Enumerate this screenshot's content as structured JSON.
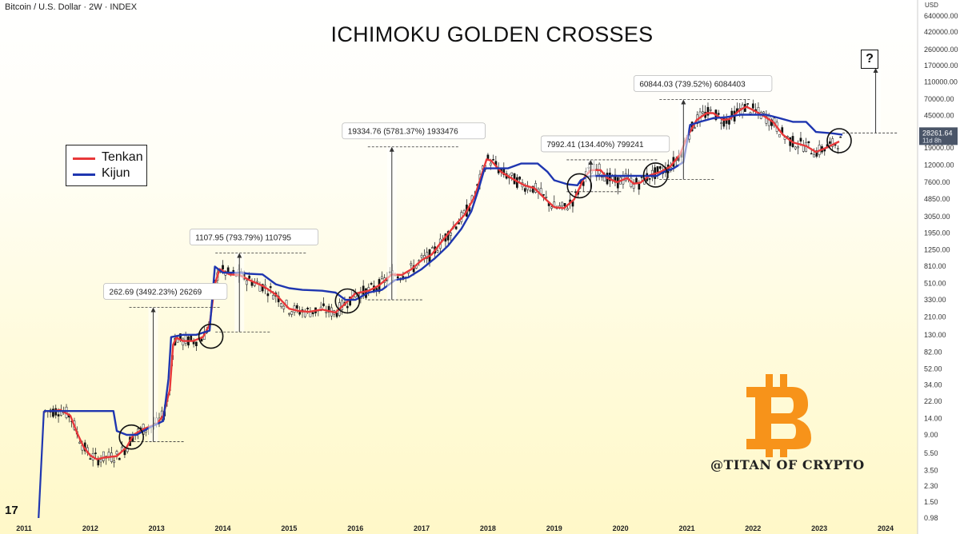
{
  "header": {
    "symbol_line": "Bitcoin / U.S. Dollar · 2W · INDEX",
    "title": "ICHIMOKU GOLDEN CROSSES"
  },
  "legend": [
    {
      "label": "Tenkan",
      "color": "#e8383a"
    },
    {
      "label": "Kijun",
      "color": "#1f36b0"
    }
  ],
  "watermark": "@TITAN OF CRYPTO",
  "question_mark": "?",
  "tv_logo": "17",
  "price_scale": {
    "currency": "USD",
    "last_price": "28261.64",
    "countdown": "11d 8h",
    "last_price_color": "#4a5568"
  },
  "colors": {
    "tenkan": "#e8383a",
    "kijun": "#1f36b0",
    "candle": "#111111",
    "bitcoin_logo": "#f7931a"
  },
  "chart_data": {
    "type": "line",
    "log_scale": true,
    "x_axis_ticks": [
      "2011",
      "2012",
      "2013",
      "2014",
      "2015",
      "2016",
      "2017",
      "2018",
      "2019",
      "2020",
      "2021",
      "2022",
      "2023",
      "2024"
    ],
    "y_axis_ticks": [
      640000,
      420000,
      260000,
      170000,
      110000,
      70000,
      45000,
      28261.64,
      19000,
      12000,
      7600,
      4850,
      3050,
      1950,
      1250,
      810,
      510,
      330,
      210,
      130,
      82,
      52,
      34,
      22,
      14,
      9,
      5.5,
      3.5,
      2.3,
      1.5,
      0.98
    ],
    "y_axis_tick_labels": [
      "640000.00",
      "420000.00",
      "260000.00",
      "170000.00",
      "110000.00",
      "70000.00",
      "45000.00",
      "28261.64",
      "19000.00",
      "12000.00",
      "7600.00",
      "4850.00",
      "3050.00",
      "1950.00",
      "1250.00",
      "810.00",
      "510.00",
      "330.00",
      "210.00",
      "130.00",
      "82.00",
      "52.00",
      "34.00",
      "22.00",
      "14.00",
      "9.00",
      "5.50",
      "3.50",
      "2.30",
      "1.50",
      "0.98"
    ],
    "ylim": [
      0.98,
      640000
    ],
    "xlim": [
      2011.0,
      2024.0
    ],
    "grid": false,
    "legend_position": "left",
    "series": [
      {
        "name": "Tenkan",
        "color": "#e8383a",
        "points": [
          [
            2011.3,
            17
          ],
          [
            2011.45,
            17
          ],
          [
            2011.55,
            17.5
          ],
          [
            2011.7,
            15
          ],
          [
            2011.8,
            9.5
          ],
          [
            2011.9,
            6.5
          ],
          [
            2012.0,
            5.2
          ],
          [
            2012.1,
            4.7
          ],
          [
            2012.2,
            4.9
          ],
          [
            2012.4,
            5.1
          ],
          [
            2012.55,
            6.5
          ],
          [
            2012.65,
            9
          ],
          [
            2012.8,
            10.5
          ],
          [
            2013.0,
            12
          ],
          [
            2013.1,
            15
          ],
          [
            2013.2,
            30
          ],
          [
            2013.25,
            100
          ],
          [
            2013.3,
            120
          ],
          [
            2013.4,
            110
          ],
          [
            2013.55,
            110
          ],
          [
            2013.7,
            122
          ],
          [
            2013.8,
            170
          ],
          [
            2013.88,
            500
          ],
          [
            2013.95,
            750
          ],
          [
            2014.1,
            650
          ],
          [
            2014.25,
            640
          ],
          [
            2014.4,
            560
          ],
          [
            2014.6,
            480
          ],
          [
            2014.8,
            380
          ],
          [
            2015.0,
            260
          ],
          [
            2015.15,
            245
          ],
          [
            2015.3,
            240
          ],
          [
            2015.5,
            255
          ],
          [
            2015.7,
            235
          ],
          [
            2015.85,
            300
          ],
          [
            2016.0,
            390
          ],
          [
            2016.2,
            420
          ],
          [
            2016.35,
            480
          ],
          [
            2016.55,
            650
          ],
          [
            2016.7,
            640
          ],
          [
            2016.85,
            750
          ],
          [
            2017.0,
            950
          ],
          [
            2017.15,
            1100
          ],
          [
            2017.3,
            1550
          ],
          [
            2017.5,
            2400
          ],
          [
            2017.65,
            3200
          ],
          [
            2017.8,
            5200
          ],
          [
            2017.9,
            9000
          ],
          [
            2017.98,
            14000
          ],
          [
            2018.05,
            13500
          ],
          [
            2018.2,
            10000
          ],
          [
            2018.35,
            8500
          ],
          [
            2018.55,
            7000
          ],
          [
            2018.7,
            6500
          ],
          [
            2018.85,
            5000
          ],
          [
            2019.0,
            3900
          ],
          [
            2019.15,
            3800
          ],
          [
            2019.3,
            4800
          ],
          [
            2019.45,
            8500
          ],
          [
            2019.55,
            10500
          ],
          [
            2019.7,
            10500
          ],
          [
            2019.8,
            8500
          ],
          [
            2019.95,
            7600
          ],
          [
            2020.1,
            8500
          ],
          [
            2020.2,
            7300
          ],
          [
            2020.3,
            7500
          ],
          [
            2020.45,
            9200
          ],
          [
            2020.6,
            10000
          ],
          [
            2020.75,
            11500
          ],
          [
            2020.9,
            16000
          ],
          [
            2021.0,
            25000
          ],
          [
            2021.15,
            40000
          ],
          [
            2021.3,
            48000
          ],
          [
            2021.4,
            48000
          ],
          [
            2021.55,
            40000
          ],
          [
            2021.65,
            41000
          ],
          [
            2021.8,
            52000
          ],
          [
            2021.9,
            57000
          ],
          [
            2022.0,
            52000
          ],
          [
            2022.15,
            45000
          ],
          [
            2022.3,
            38000
          ],
          [
            2022.45,
            27000
          ],
          [
            2022.6,
            22000
          ],
          [
            2022.8,
            20000
          ],
          [
            2022.95,
            17000
          ],
          [
            2023.1,
            19000
          ],
          [
            2023.3,
            22500
          ]
        ]
      },
      {
        "name": "Kijun",
        "color": "#1f36b0",
        "points": [
          [
            2011.3,
            17
          ],
          [
            2011.5,
            17
          ],
          [
            2011.8,
            17
          ],
          [
            2012.0,
            17
          ],
          [
            2012.2,
            17
          ],
          [
            2012.35,
            17
          ],
          [
            2012.4,
            10
          ],
          [
            2012.55,
            9
          ],
          [
            2012.7,
            9
          ],
          [
            2012.9,
            11
          ],
          [
            2013.1,
            13
          ],
          [
            2013.18,
            40
          ],
          [
            2013.22,
            122
          ],
          [
            2013.4,
            130
          ],
          [
            2013.6,
            130
          ],
          [
            2013.8,
            145
          ],
          [
            2013.88,
            800
          ],
          [
            2014.0,
            680
          ],
          [
            2014.25,
            680
          ],
          [
            2014.4,
            660
          ],
          [
            2014.6,
            650
          ],
          [
            2014.8,
            500
          ],
          [
            2015.0,
            450
          ],
          [
            2015.2,
            430
          ],
          [
            2015.5,
            420
          ],
          [
            2015.7,
            400
          ],
          [
            2015.85,
            330
          ],
          [
            2016.0,
            330
          ],
          [
            2016.2,
            400
          ],
          [
            2016.4,
            430
          ],
          [
            2016.6,
            560
          ],
          [
            2016.8,
            600
          ],
          [
            2017.0,
            750
          ],
          [
            2017.2,
            1000
          ],
          [
            2017.4,
            1400
          ],
          [
            2017.6,
            2200
          ],
          [
            2017.75,
            3500
          ],
          [
            2017.85,
            6000
          ],
          [
            2017.95,
            11000
          ],
          [
            2018.1,
            11000
          ],
          [
            2018.3,
            11000
          ],
          [
            2018.5,
            12500
          ],
          [
            2018.6,
            12500
          ],
          [
            2018.75,
            12500
          ],
          [
            2018.9,
            10000
          ],
          [
            2019.0,
            8000
          ],
          [
            2019.2,
            7200
          ],
          [
            2019.35,
            7000
          ],
          [
            2019.4,
            8000
          ],
          [
            2019.5,
            8800
          ],
          [
            2019.6,
            9000
          ],
          [
            2019.8,
            9000
          ],
          [
            2020.0,
            9000
          ],
          [
            2020.2,
            9000
          ],
          [
            2020.4,
            9000
          ],
          [
            2020.55,
            9000
          ],
          [
            2020.65,
            10000
          ],
          [
            2020.8,
            11000
          ],
          [
            2020.95,
            13000
          ],
          [
            2021.05,
            35000
          ],
          [
            2021.2,
            38000
          ],
          [
            2021.4,
            42000
          ],
          [
            2021.6,
            43000
          ],
          [
            2021.8,
            46000
          ],
          [
            2022.0,
            46000
          ],
          [
            2022.2,
            46000
          ],
          [
            2022.4,
            42000
          ],
          [
            2022.6,
            38000
          ],
          [
            2022.8,
            38000
          ],
          [
            2022.95,
            29000
          ],
          [
            2023.2,
            28000
          ],
          [
            2023.35,
            27000
          ]
        ]
      }
    ],
    "annotations": [
      {
        "label": "262.69 (3492.23%) 26269",
        "x": 2012.95,
        "y_from": 7.5,
        "y_to": 270
      },
      {
        "label": "1107.95 (793.79%) 110795",
        "x": 2014.25,
        "y_from": 140,
        "y_to": 1150
      },
      {
        "label": "19334.76 (5781.37%) 1933476",
        "x": 2016.55,
        "y_from": 330,
        "y_to": 19500
      },
      {
        "label": "7992.41 (134.40%) 799241",
        "x": 2019.55,
        "y_from": 5900,
        "y_to": 13800
      },
      {
        "label": "60844.03 (739.52%) 6084403",
        "x": 2020.95,
        "y_from": 8200,
        "y_to": 69000
      }
    ],
    "golden_crosses": [
      {
        "x": 2012.62,
        "y": 8.5
      },
      {
        "x": 2013.82,
        "y": 125
      },
      {
        "x": 2015.88,
        "y": 320
      },
      {
        "x": 2019.38,
        "y": 6900
      },
      {
        "x": 2020.53,
        "y": 9200
      },
      {
        "x": 2023.3,
        "y": 23000
      }
    ],
    "projection": {
      "x": 2023.85,
      "y_from": 28261.64,
      "y_to": 160000
    }
  }
}
